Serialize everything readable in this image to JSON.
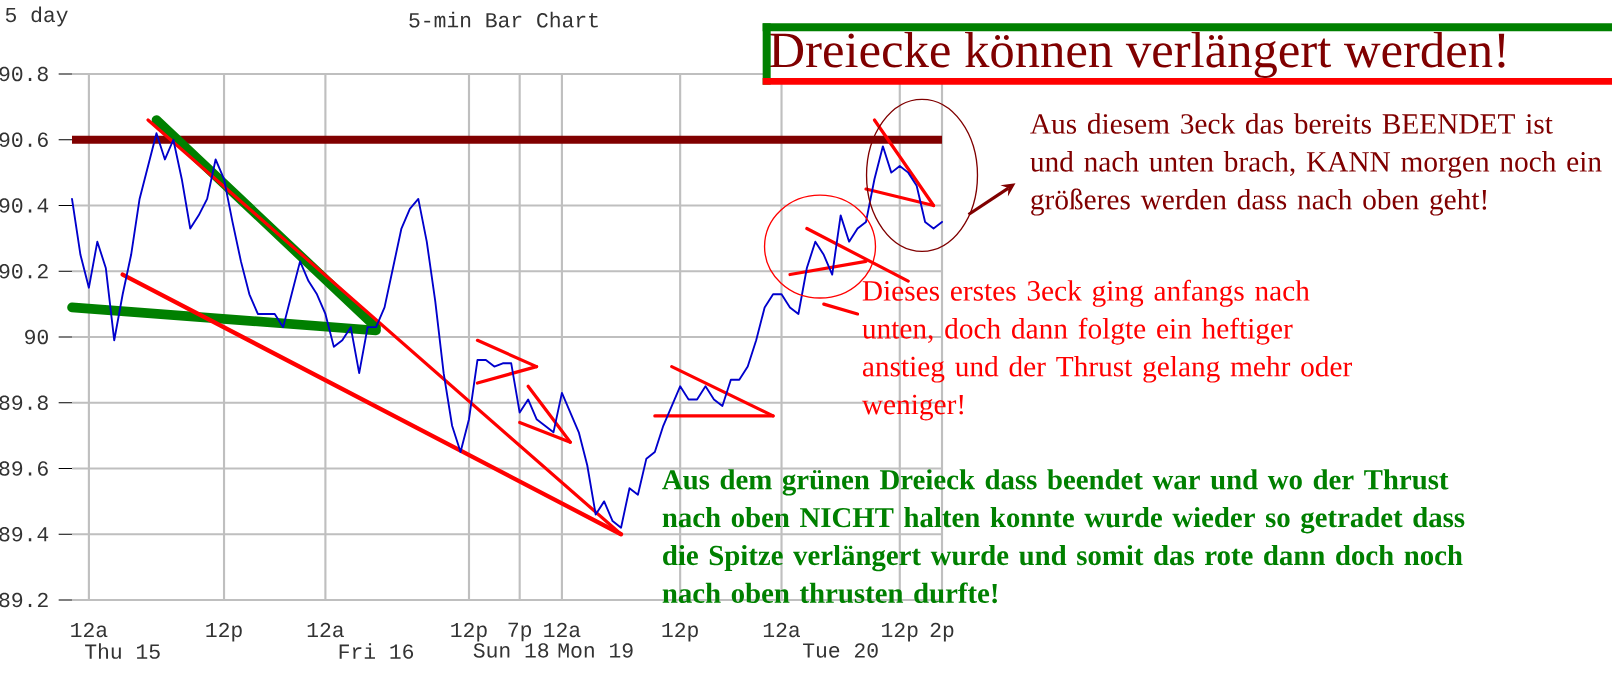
{
  "chart_data": {
    "type": "line",
    "title": "5-min Bar Chart",
    "subtitle": "5 day",
    "annotations": [
      "Dreiecke können verlängert werden!",
      "Aus diesem 3eck das bereits BEENDET ist und nach unten brach, KANN morgen noch ein größeres werden dass nach oben geht!",
      "Dieses erstes 3eck ging anfangs nach unten, doch dann folgte ein heftiger anstieg und der Thrust gelang mehr oder weniger!",
      "Aus dem grünen Dreieck dass beendet war und wo der Thrust nach oben NICHT halten konnte wurde wieder so getradet dass die Spitze verlängert wurde und somit das rote dann doch noch nach oben thrusten durfte!",
      "Thu 15",
      "Fri 16",
      "Sun 18",
      "Mon 19",
      "Tue 20"
    ],
    "categories": [
      null,
      null,
      "12a",
      null,
      null,
      null,
      null,
      null,
      null,
      null,
      null,
      null,
      null,
      null,
      null,
      null,
      null,
      null,
      "12p",
      null,
      null,
      null,
      null,
      null,
      null,
      null,
      null,
      null,
      null,
      null,
      "12a",
      null,
      null,
      null,
      null,
      null,
      null,
      null,
      null,
      null,
      null,
      null,
      null,
      null,
      null,
      null,
      null,
      "12p",
      null,
      null,
      null,
      null,
      null,
      "7p",
      null,
      null,
      null,
      null,
      "12a",
      null,
      null,
      null,
      null,
      null,
      null,
      null,
      null,
      null,
      null,
      null,
      null,
      null,
      "12p",
      null,
      null,
      null,
      null,
      null,
      null,
      null,
      null,
      null,
      null,
      null,
      "12a",
      null,
      null,
      null,
      null,
      null,
      null,
      null,
      null,
      null,
      null,
      null,
      null,
      null,
      "12p",
      null,
      null,
      null,
      null,
      "2p"
    ],
    "ylim": [
      89.2,
      90.8
    ],
    "yticks": [
      89.2,
      89.4,
      89.6,
      89.8,
      90,
      90.2,
      90.4,
      90.6,
      90.8
    ],
    "grid": true,
    "ref_lines": [
      {
        "axis": "y",
        "value": 90.6,
        "color": "#800000"
      }
    ],
    "series": [
      {
        "color": "#0000cc",
        "values": [
          90.42,
          90.25,
          90.15,
          90.29,
          90.21,
          89.99,
          90.13,
          90.25,
          90.42,
          90.52,
          90.62,
          90.54,
          90.6,
          90.48,
          90.33,
          90.37,
          90.42,
          90.54,
          90.48,
          90.35,
          90.23,
          90.13,
          90.07,
          90.07,
          90.07,
          90.03,
          90.13,
          90.23,
          90.17,
          90.13,
          90.07,
          89.97,
          89.99,
          90.03,
          89.89,
          90.03,
          90.03,
          90.09,
          90.21,
          90.33,
          90.39,
          90.42,
          90.29,
          90.11,
          89.89,
          89.73,
          89.65,
          89.75,
          89.93,
          89.93,
          89.91,
          89.92,
          89.92,
          89.77,
          89.81,
          89.75,
          89.73,
          89.71,
          89.83,
          89.77,
          89.71,
          89.61,
          89.46,
          89.5,
          89.44,
          89.42,
          89.54,
          89.52,
          89.63,
          89.65,
          89.73,
          89.79,
          89.85,
          89.81,
          89.81,
          89.85,
          89.81,
          89.79,
          89.87,
          89.87,
          89.91,
          89.99,
          90.09,
          90.13,
          90.13,
          90.09,
          90.07,
          90.21,
          90.29,
          90.25,
          90.19,
          90.37,
          90.29,
          90.33,
          90.35,
          90.48,
          90.58,
          90.5,
          90.52,
          90.5,
          90.46,
          90.35,
          90.33,
          90.35
        ]
      },
      {
        "color": "#008000",
        "values": [
          null,
          null,
          null,
          null,
          null,
          null,
          null,
          null,
          null,
          null,
          90.66,
          null,
          null,
          null,
          null,
          null,
          null,
          null,
          null,
          null,
          null,
          null,
          null,
          null,
          null,
          null,
          null,
          null,
          null,
          null,
          null,
          null,
          null,
          null,
          null,
          null,
          90.03,
          null,
          null,
          null,
          null,
          null,
          null,
          null,
          null,
          null,
          null,
          null,
          null,
          null,
          null,
          null,
          null,
          null,
          null,
          null,
          null,
          null,
          null,
          null,
          null,
          null,
          null,
          null,
          null,
          null,
          null,
          null,
          null,
          null,
          null,
          null,
          null,
          null,
          null,
          null,
          null,
          null,
          null,
          null,
          null,
          null,
          null,
          null,
          null,
          null,
          null,
          null,
          null,
          null,
          null,
          null,
          null,
          null,
          null,
          null,
          null,
          null,
          null,
          null,
          null,
          null,
          null,
          null
        ]
      },
      {
        "color": "#008000",
        "values": [
          90.09,
          null,
          null,
          null,
          null,
          null,
          null,
          null,
          null,
          null,
          null,
          null,
          null,
          null,
          null,
          null,
          null,
          null,
          null,
          null,
          null,
          null,
          null,
          null,
          null,
          null,
          null,
          null,
          null,
          null,
          null,
          null,
          null,
          null,
          null,
          null,
          90.02,
          null,
          null,
          null,
          null,
          null,
          null,
          null,
          null,
          null,
          null,
          null,
          null,
          null,
          null,
          null,
          null,
          null,
          null,
          null,
          null,
          null,
          null,
          null,
          null,
          null,
          null,
          null,
          null,
          null,
          null,
          null,
          null,
          null,
          null,
          null,
          null,
          null,
          null,
          null,
          null,
          null,
          null,
          null,
          null,
          null,
          null,
          null,
          null,
          null,
          null,
          null,
          null,
          null,
          null,
          null,
          null,
          null,
          null,
          null,
          null,
          null,
          null,
          null,
          null,
          null,
          null,
          null
        ]
      },
      {
        "color": "#ff0000",
        "values": [
          null,
          null,
          null,
          null,
          null,
          null,
          90.19,
          null,
          null,
          null,
          null,
          null,
          null,
          null,
          null,
          null,
          null,
          null,
          null,
          null,
          null,
          null,
          null,
          null,
          null,
          null,
          null,
          null,
          null,
          null,
          null,
          null,
          null,
          null,
          null,
          null,
          null,
          null,
          null,
          null,
          null,
          null,
          null,
          null,
          null,
          null,
          null,
          null,
          null,
          null,
          null,
          null,
          null,
          null,
          null,
          null,
          null,
          null,
          null,
          null,
          null,
          null,
          null,
          null,
          null,
          89.4,
          null,
          null,
          null,
          null,
          null,
          null,
          null,
          null,
          null,
          null,
          null,
          null,
          null,
          null,
          null,
          null,
          null,
          null,
          null,
          null,
          null,
          null,
          null,
          null,
          null,
          null,
          null,
          null,
          null,
          null,
          null,
          null,
          null,
          null,
          null,
          null,
          null,
          null
        ]
      },
      {
        "color": "#ff0000",
        "values": [
          null,
          null,
          null,
          null,
          null,
          null,
          null,
          null,
          null,
          90.66,
          null,
          null,
          null,
          null,
          null,
          null,
          null,
          null,
          null,
          null,
          null,
          null,
          null,
          null,
          null,
          null,
          null,
          null,
          null,
          null,
          null,
          null,
          null,
          null,
          null,
          null,
          null,
          null,
          null,
          null,
          null,
          null,
          null,
          null,
          null,
          null,
          null,
          null,
          null,
          null,
          null,
          null,
          null,
          null,
          null,
          null,
          null,
          null,
          null,
          null,
          null,
          null,
          null,
          null,
          null,
          89.4,
          null,
          null,
          null,
          null,
          null,
          null,
          null,
          null,
          null,
          null,
          null,
          null,
          null,
          null,
          null,
          null,
          null,
          null,
          null,
          null,
          null,
          null,
          null,
          null,
          null,
          null,
          null,
          null,
          null,
          null,
          null,
          null,
          null,
          null,
          null,
          null,
          null,
          null
        ]
      },
      {
        "color": "#ff0000",
        "values": [
          null,
          null,
          null,
          null,
          null,
          null,
          null,
          null,
          null,
          null,
          null,
          null,
          null,
          null,
          null,
          null,
          null,
          null,
          null,
          null,
          null,
          null,
          null,
          null,
          null,
          null,
          null,
          null,
          null,
          null,
          null,
          null,
          null,
          null,
          null,
          null,
          null,
          null,
          null,
          null,
          null,
          null,
          null,
          null,
          null,
          null,
          null,
          null,
          89.99,
          null,
          null,
          null,
          null,
          null,
          null,
          89.91,
          null,
          null,
          null,
          null,
          null,
          null,
          null,
          null,
          null,
          null,
          null,
          null,
          null,
          null,
          null,
          null,
          null,
          null,
          null,
          null,
          null,
          null,
          null,
          null,
          null,
          null,
          null,
          null,
          null,
          null,
          null,
          null,
          null,
          null,
          null,
          null,
          null,
          null,
          null,
          null,
          null,
          null,
          null,
          null,
          null,
          null,
          null,
          null
        ]
      },
      {
        "color": "#ff0000",
        "values": [
          null,
          null,
          null,
          null,
          null,
          null,
          null,
          null,
          null,
          null,
          null,
          null,
          null,
          null,
          null,
          null,
          null,
          null,
          null,
          null,
          null,
          null,
          null,
          null,
          null,
          null,
          null,
          null,
          null,
          null,
          null,
          null,
          null,
          null,
          null,
          null,
          null,
          null,
          null,
          null,
          null,
          null,
          null,
          null,
          null,
          null,
          null,
          null,
          89.86,
          null,
          null,
          null,
          null,
          null,
          null,
          89.91,
          null,
          null,
          null,
          null,
          null,
          null,
          null,
          null,
          null,
          null,
          null,
          null,
          null,
          null,
          null,
          null,
          null,
          null,
          null,
          null,
          null,
          null,
          null,
          null,
          null,
          null,
          null,
          null,
          null,
          null,
          null,
          null,
          null,
          null,
          null,
          null,
          null,
          null,
          null,
          null,
          null,
          null,
          null,
          null,
          null,
          null,
          null,
          null
        ]
      },
      {
        "color": "#ff0000",
        "values": [
          null,
          null,
          null,
          null,
          null,
          null,
          null,
          null,
          null,
          null,
          null,
          null,
          null,
          null,
          null,
          null,
          null,
          null,
          null,
          null,
          null,
          null,
          null,
          null,
          null,
          null,
          null,
          null,
          null,
          null,
          null,
          null,
          null,
          null,
          null,
          null,
          null,
          null,
          null,
          null,
          null,
          null,
          null,
          null,
          null,
          null,
          null,
          null,
          null,
          null,
          null,
          null,
          null,
          null,
          89.85,
          null,
          null,
          null,
          null,
          89.68,
          null,
          null,
          null,
          null,
          null,
          null,
          null,
          null,
          null,
          null,
          null,
          null,
          null,
          null,
          null,
          null,
          null,
          null,
          null,
          null,
          null,
          null,
          null,
          null,
          null,
          null,
          null,
          null,
          null,
          null,
          null,
          null,
          null,
          null,
          null,
          null,
          null,
          null,
          null,
          null,
          null,
          null,
          null,
          null
        ]
      },
      {
        "color": "#ff0000",
        "values": [
          null,
          null,
          null,
          null,
          null,
          null,
          null,
          null,
          null,
          null,
          null,
          null,
          null,
          null,
          null,
          null,
          null,
          null,
          null,
          null,
          null,
          null,
          null,
          null,
          null,
          null,
          null,
          null,
          null,
          null,
          null,
          null,
          null,
          null,
          null,
          null,
          null,
          null,
          null,
          null,
          null,
          null,
          null,
          null,
          null,
          null,
          null,
          null,
          null,
          null,
          null,
          null,
          null,
          89.74,
          null,
          null,
          null,
          null,
          null,
          89.68,
          null,
          null,
          null,
          null,
          null,
          null,
          null,
          null,
          null,
          null,
          null,
          null,
          null,
          null,
          null,
          null,
          null,
          null,
          null,
          null,
          null,
          null,
          null,
          null,
          null,
          null,
          null,
          null,
          null,
          null,
          null,
          null,
          null,
          null,
          null,
          null,
          null,
          null,
          null,
          null,
          null,
          null,
          null,
          null
        ]
      },
      {
        "color": "#ff0000",
        "values": [
          null,
          null,
          null,
          null,
          null,
          null,
          null,
          null,
          null,
          null,
          null,
          null,
          null,
          null,
          null,
          null,
          null,
          null,
          null,
          null,
          null,
          null,
          null,
          null,
          null,
          null,
          null,
          null,
          null,
          null,
          null,
          null,
          null,
          null,
          null,
          null,
          null,
          null,
          null,
          null,
          null,
          null,
          null,
          null,
          null,
          null,
          null,
          null,
          null,
          null,
          null,
          null,
          null,
          null,
          null,
          null,
          null,
          null,
          null,
          null,
          null,
          null,
          null,
          null,
          null,
          null,
          null,
          null,
          null,
          null,
          null,
          89.91,
          null,
          null,
          null,
          null,
          null,
          null,
          null,
          null,
          null,
          null,
          null,
          89.76,
          null,
          null,
          null,
          null,
          null,
          null,
          null,
          null,
          null,
          null,
          null,
          null,
          null,
          null,
          null,
          null,
          null,
          null,
          null,
          null
        ]
      },
      {
        "color": "#ff0000",
        "values": [
          null,
          null,
          null,
          null,
          null,
          null,
          null,
          null,
          null,
          null,
          null,
          null,
          null,
          null,
          null,
          null,
          null,
          null,
          null,
          null,
          null,
          null,
          null,
          null,
          null,
          null,
          null,
          null,
          null,
          null,
          null,
          null,
          null,
          null,
          null,
          null,
          null,
          null,
          null,
          null,
          null,
          null,
          null,
          null,
          null,
          null,
          null,
          null,
          null,
          null,
          null,
          null,
          null,
          null,
          null,
          null,
          null,
          null,
          null,
          null,
          null,
          null,
          null,
          null,
          null,
          null,
          null,
          null,
          null,
          89.76,
          null,
          null,
          null,
          null,
          null,
          null,
          null,
          null,
          null,
          null,
          null,
          null,
          null,
          89.76,
          null,
          null,
          null,
          null,
          null,
          null,
          null,
          null,
          null,
          null,
          null,
          null,
          null,
          null,
          null,
          null,
          null,
          null,
          null,
          null
        ]
      },
      {
        "color": "#ff0000",
        "values": [
          null,
          null,
          null,
          null,
          null,
          null,
          null,
          null,
          null,
          null,
          null,
          null,
          null,
          null,
          null,
          null,
          null,
          null,
          null,
          null,
          null,
          null,
          null,
          null,
          null,
          null,
          null,
          null,
          null,
          null,
          null,
          null,
          null,
          null,
          null,
          null,
          null,
          null,
          null,
          null,
          null,
          null,
          null,
          null,
          null,
          null,
          null,
          null,
          null,
          null,
          null,
          null,
          null,
          null,
          null,
          null,
          null,
          null,
          null,
          null,
          null,
          null,
          null,
          null,
          null,
          null,
          null,
          null,
          null,
          null,
          null,
          null,
          null,
          null,
          null,
          null,
          null,
          null,
          null,
          null,
          null,
          null,
          null,
          null,
          null,
          null,
          null,
          90.33,
          null,
          null,
          null,
          null,
          null,
          null,
          null,
          null,
          null,
          null,
          null,
          90.17,
          null,
          null,
          null,
          null
        ]
      },
      {
        "color": "#ff0000",
        "values": [
          null,
          null,
          null,
          null,
          null,
          null,
          null,
          null,
          null,
          null,
          null,
          null,
          null,
          null,
          null,
          null,
          null,
          null,
          null,
          null,
          null,
          null,
          null,
          null,
          null,
          null,
          null,
          null,
          null,
          null,
          null,
          null,
          null,
          null,
          null,
          null,
          null,
          null,
          null,
          null,
          null,
          null,
          null,
          null,
          null,
          null,
          null,
          null,
          null,
          null,
          null,
          null,
          null,
          null,
          null,
          null,
          null,
          null,
          null,
          null,
          null,
          null,
          null,
          null,
          null,
          null,
          null,
          null,
          null,
          null,
          null,
          null,
          null,
          null,
          null,
          null,
          null,
          null,
          null,
          null,
          null,
          null,
          null,
          null,
          null,
          90.19,
          null,
          null,
          null,
          null,
          null,
          null,
          null,
          null,
          90.23,
          null,
          null,
          null,
          null,
          null,
          null,
          null,
          null,
          null
        ]
      },
      {
        "color": "#ff0000",
        "values": [
          null,
          null,
          null,
          null,
          null,
          null,
          null,
          null,
          null,
          null,
          null,
          null,
          null,
          null,
          null,
          null,
          null,
          null,
          null,
          null,
          null,
          null,
          null,
          null,
          null,
          null,
          null,
          null,
          null,
          null,
          null,
          null,
          null,
          null,
          null,
          null,
          null,
          null,
          null,
          null,
          null,
          null,
          null,
          null,
          null,
          null,
          null,
          null,
          null,
          null,
          null,
          null,
          null,
          null,
          null,
          null,
          null,
          null,
          null,
          null,
          null,
          null,
          null,
          null,
          null,
          null,
          null,
          null,
          null,
          null,
          null,
          null,
          null,
          null,
          null,
          null,
          null,
          null,
          null,
          null,
          null,
          null,
          null,
          null,
          null,
          null,
          null,
          null,
          null,
          90.1,
          null,
          null,
          null,
          90.07,
          null,
          null,
          null,
          null,
          null,
          null,
          null,
          null,
          null,
          null
        ]
      },
      {
        "color": "#ff0000",
        "values": [
          null,
          null,
          null,
          null,
          null,
          null,
          null,
          null,
          null,
          null,
          null,
          null,
          null,
          null,
          null,
          null,
          null,
          null,
          null,
          null,
          null,
          null,
          null,
          null,
          null,
          null,
          null,
          null,
          null,
          null,
          null,
          null,
          null,
          null,
          null,
          null,
          null,
          null,
          null,
          null,
          null,
          null,
          null,
          null,
          null,
          null,
          null,
          null,
          null,
          null,
          null,
          null,
          null,
          null,
          null,
          null,
          null,
          null,
          null,
          null,
          null,
          null,
          null,
          null,
          null,
          null,
          null,
          null,
          null,
          null,
          null,
          null,
          null,
          null,
          null,
          null,
          null,
          null,
          null,
          null,
          null,
          null,
          null,
          null,
          null,
          null,
          null,
          null,
          null,
          null,
          null,
          null,
          null,
          null,
          null,
          90.66,
          null,
          null,
          null,
          null,
          null,
          null,
          90.4,
          null
        ]
      },
      {
        "color": "#ff0000",
        "values": [
          null,
          null,
          null,
          null,
          null,
          null,
          null,
          null,
          null,
          null,
          null,
          null,
          null,
          null,
          null,
          null,
          null,
          null,
          null,
          null,
          null,
          null,
          null,
          null,
          null,
          null,
          null,
          null,
          null,
          null,
          null,
          null,
          null,
          null,
          null,
          null,
          null,
          null,
          null,
          null,
          null,
          null,
          null,
          null,
          null,
          null,
          null,
          null,
          null,
          null,
          null,
          null,
          null,
          null,
          null,
          null,
          null,
          null,
          null,
          null,
          null,
          null,
          null,
          null,
          null,
          null,
          null,
          null,
          null,
          null,
          null,
          null,
          null,
          null,
          null,
          null,
          null,
          null,
          null,
          null,
          null,
          null,
          null,
          null,
          null,
          null,
          null,
          null,
          null,
          null,
          null,
          null,
          null,
          null,
          90.45,
          null,
          null,
          null,
          null,
          null,
          null,
          null,
          90.4,
          null
        ]
      }
    ]
  }
}
